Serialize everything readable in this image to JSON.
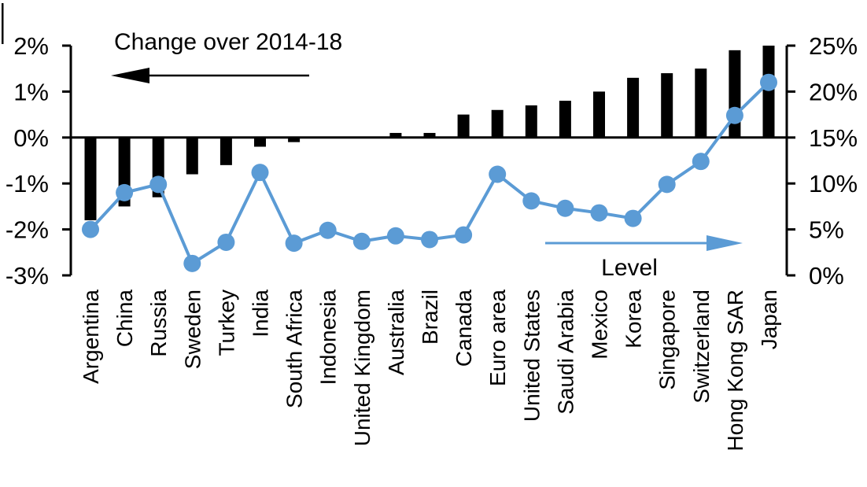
{
  "figure": {
    "background_color": "#ffffff",
    "text_color": "#000000"
  },
  "chart_data": {
    "type": "bar+line combo",
    "grid": false,
    "categories": [
      "Argentina",
      "China",
      "Russia",
      "Sweden",
      "Turkey",
      "India",
      "South Africa",
      "Indonesia",
      "United Kingdom",
      "Australia",
      "Brazil",
      "Canada",
      "Euro area",
      "United States",
      "Saudi Arabia",
      "Mexico",
      "Korea",
      "Singapore",
      "Switzerland",
      "Hong Kong SAR",
      "Japan"
    ],
    "series": [
      {
        "name": "Change over 2014-18",
        "type": "bar",
        "axis": "left",
        "color": "#000000",
        "values": [
          -1.8,
          -1.5,
          -1.3,
          -0.8,
          -0.6,
          -0.2,
          -0.1,
          0.0,
          0.0,
          0.1,
          0.1,
          0.5,
          0.6,
          0.7,
          0.8,
          1.0,
          1.3,
          1.4,
          1.5,
          1.9,
          2.0
        ]
      },
      {
        "name": "Level",
        "type": "line",
        "axis": "right",
        "color": "#5B9BD5",
        "values": [
          5.0,
          9.0,
          9.9,
          1.3,
          3.6,
          11.2,
          3.5,
          4.9,
          3.7,
          4.3,
          3.9,
          4.4,
          11.0,
          8.1,
          7.3,
          6.8,
          6.2,
          9.9,
          12.4,
          17.4,
          21.0
        ]
      }
    ],
    "left_axis": {
      "range": [
        -3,
        2
      ],
      "ticks": [
        2,
        1,
        0,
        -1,
        -2,
        -3
      ],
      "tick_labels": [
        "2%",
        "1%",
        "0%",
        "-1%",
        "-2%",
        "-3%"
      ]
    },
    "right_axis": {
      "range": [
        0,
        25
      ],
      "ticks": [
        25,
        20,
        15,
        10,
        5,
        0
      ],
      "tick_labels": [
        "25%",
        "20%",
        "15%",
        "10%",
        "5%",
        "0%"
      ]
    },
    "annotations": [
      {
        "text": "Change over 2014-18",
        "arrow_direction": "left",
        "arrow_color": "#000000",
        "text_color": "#000000"
      },
      {
        "text": "Level",
        "arrow_direction": "right",
        "arrow_color": "#5B9BD5",
        "text_color": "#000000"
      }
    ]
  }
}
